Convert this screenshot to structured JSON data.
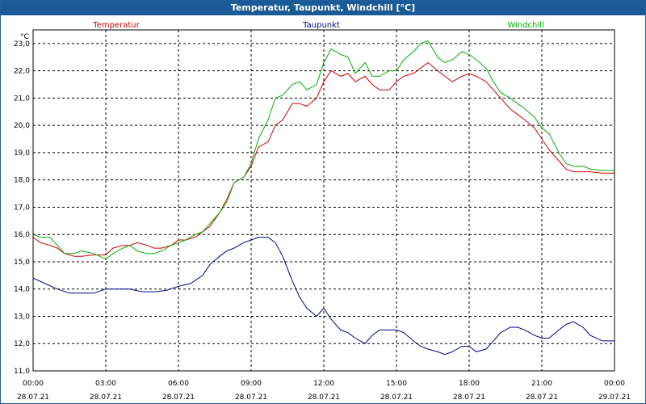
{
  "window": {
    "title": "Temperatur, Taupunkt, Windchill [°C]"
  },
  "chart_data": {
    "type": "line",
    "title": "Temperatur, Taupunkt, Windchill [°C]",
    "ylabel": "°C",
    "ylim": [
      11.0,
      23.5
    ],
    "xlim": [
      "00:00",
      "24:00"
    ],
    "y_ticks": [
      "11,0",
      "12,0",
      "13,0",
      "14,0",
      "15,0",
      "16,0",
      "17,0",
      "18,0",
      "19,0",
      "20,0",
      "21,0",
      "22,0",
      "23,0"
    ],
    "x_ticks": [
      {
        "time": "00:00",
        "date": "28.07.21"
      },
      {
        "time": "03:00",
        "date": "28.07.21"
      },
      {
        "time": "06:00",
        "date": "28.07.21"
      },
      {
        "time": "09:00",
        "date": "28.07.21"
      },
      {
        "time": "12:00",
        "date": "28.07.21"
      },
      {
        "time": "15:00",
        "date": "28.07.21"
      },
      {
        "time": "18:00",
        "date": "28.07.21"
      },
      {
        "time": "21:00",
        "date": "28.07.21"
      },
      {
        "time": "00:00",
        "date": "29.07.21"
      }
    ],
    "grid": true,
    "legend_position": "top",
    "series": [
      {
        "name": "Temperatur",
        "color": "#d00000",
        "points": [
          [
            0.0,
            15.9
          ],
          [
            0.3,
            15.7
          ],
          [
            0.7,
            15.6
          ],
          [
            1.0,
            15.5
          ],
          [
            1.3,
            15.3
          ],
          [
            1.7,
            15.2
          ],
          [
            2.0,
            15.2
          ],
          [
            2.5,
            15.25
          ],
          [
            3.0,
            15.25
          ],
          [
            3.3,
            15.5
          ],
          [
            3.7,
            15.6
          ],
          [
            4.0,
            15.6
          ],
          [
            4.3,
            15.7
          ],
          [
            4.7,
            15.6
          ],
          [
            5.0,
            15.5
          ],
          [
            5.3,
            15.5
          ],
          [
            5.7,
            15.6
          ],
          [
            6.0,
            15.8
          ],
          [
            6.3,
            15.8
          ],
          [
            6.7,
            15.9
          ],
          [
            7.0,
            16.1
          ],
          [
            7.3,
            16.3
          ],
          [
            7.7,
            16.8
          ],
          [
            8.0,
            17.3
          ],
          [
            8.3,
            17.9
          ],
          [
            8.7,
            18.1
          ],
          [
            9.0,
            18.5
          ],
          [
            9.3,
            19.2
          ],
          [
            9.7,
            19.4
          ],
          [
            10.0,
            20.0
          ],
          [
            10.3,
            20.2
          ],
          [
            10.7,
            20.8
          ],
          [
            11.0,
            20.8
          ],
          [
            11.3,
            20.7
          ],
          [
            11.7,
            21.0
          ],
          [
            12.0,
            21.6
          ],
          [
            12.3,
            22.0
          ],
          [
            12.7,
            21.8
          ],
          [
            13.0,
            21.9
          ],
          [
            13.3,
            21.6
          ],
          [
            13.7,
            21.8
          ],
          [
            14.0,
            21.5
          ],
          [
            14.3,
            21.3
          ],
          [
            14.7,
            21.3
          ],
          [
            15.0,
            21.6
          ],
          [
            15.3,
            21.8
          ],
          [
            15.7,
            21.9
          ],
          [
            16.0,
            22.1
          ],
          [
            16.3,
            22.3
          ],
          [
            16.7,
            22.0
          ],
          [
            17.0,
            21.8
          ],
          [
            17.3,
            21.6
          ],
          [
            17.7,
            21.8
          ],
          [
            18.0,
            21.9
          ],
          [
            18.3,
            21.8
          ],
          [
            18.7,
            21.6
          ],
          [
            19.0,
            21.3
          ],
          [
            19.3,
            21.0
          ],
          [
            19.7,
            20.6
          ],
          [
            20.0,
            20.4
          ],
          [
            20.3,
            20.2
          ],
          [
            20.7,
            19.9
          ],
          [
            21.0,
            19.5
          ],
          [
            21.3,
            19.1
          ],
          [
            21.7,
            18.7
          ],
          [
            22.0,
            18.4
          ],
          [
            22.3,
            18.3
          ],
          [
            22.7,
            18.3
          ],
          [
            23.0,
            18.3
          ],
          [
            23.5,
            18.25
          ],
          [
            24.0,
            18.25
          ]
        ]
      },
      {
        "name": "Taupunkt",
        "color": "#00008c",
        "points": [
          [
            0.0,
            14.4
          ],
          [
            0.5,
            14.2
          ],
          [
            1.0,
            14.0
          ],
          [
            1.5,
            13.85
          ],
          [
            2.0,
            13.85
          ],
          [
            2.5,
            13.85
          ],
          [
            3.0,
            14.0
          ],
          [
            3.5,
            14.0
          ],
          [
            4.0,
            14.0
          ],
          [
            4.5,
            13.9
          ],
          [
            5.0,
            13.9
          ],
          [
            5.5,
            13.95
          ],
          [
            6.0,
            14.1
          ],
          [
            6.5,
            14.2
          ],
          [
            7.0,
            14.5
          ],
          [
            7.3,
            14.9
          ],
          [
            7.7,
            15.2
          ],
          [
            8.0,
            15.4
          ],
          [
            8.3,
            15.5
          ],
          [
            8.7,
            15.7
          ],
          [
            9.0,
            15.8
          ],
          [
            9.3,
            15.9
          ],
          [
            9.7,
            15.9
          ],
          [
            10.0,
            15.7
          ],
          [
            10.3,
            15.2
          ],
          [
            10.7,
            14.3
          ],
          [
            11.0,
            13.7
          ],
          [
            11.3,
            13.3
          ],
          [
            11.7,
            13.0
          ],
          [
            12.0,
            13.3
          ],
          [
            12.3,
            12.9
          ],
          [
            12.7,
            12.5
          ],
          [
            13.0,
            12.4
          ],
          [
            13.3,
            12.2
          ],
          [
            13.7,
            12.0
          ],
          [
            14.0,
            12.3
          ],
          [
            14.3,
            12.5
          ],
          [
            14.7,
            12.5
          ],
          [
            15.0,
            12.5
          ],
          [
            15.3,
            12.4
          ],
          [
            15.7,
            12.1
          ],
          [
            16.0,
            11.9
          ],
          [
            16.3,
            11.8
          ],
          [
            16.7,
            11.7
          ],
          [
            17.0,
            11.6
          ],
          [
            17.3,
            11.7
          ],
          [
            17.7,
            11.9
          ],
          [
            18.0,
            11.9
          ],
          [
            18.3,
            11.7
          ],
          [
            18.7,
            11.8
          ],
          [
            19.0,
            12.1
          ],
          [
            19.3,
            12.4
          ],
          [
            19.7,
            12.6
          ],
          [
            20.0,
            12.6
          ],
          [
            20.3,
            12.5
          ],
          [
            20.7,
            12.3
          ],
          [
            21.0,
            12.2
          ],
          [
            21.3,
            12.2
          ],
          [
            21.7,
            12.5
          ],
          [
            22.0,
            12.7
          ],
          [
            22.3,
            12.8
          ],
          [
            22.7,
            12.6
          ],
          [
            23.0,
            12.3
          ],
          [
            23.5,
            12.1
          ],
          [
            24.0,
            12.1
          ]
        ]
      },
      {
        "name": "Windchill",
        "color": "#00b000",
        "points": [
          [
            0.0,
            16.0
          ],
          [
            0.3,
            15.9
          ],
          [
            0.7,
            15.9
          ],
          [
            1.0,
            15.6
          ],
          [
            1.3,
            15.3
          ],
          [
            1.7,
            15.3
          ],
          [
            2.0,
            15.4
          ],
          [
            2.5,
            15.3
          ],
          [
            3.0,
            15.1
          ],
          [
            3.3,
            15.3
          ],
          [
            3.7,
            15.5
          ],
          [
            4.0,
            15.6
          ],
          [
            4.3,
            15.4
          ],
          [
            4.7,
            15.3
          ],
          [
            5.0,
            15.3
          ],
          [
            5.3,
            15.4
          ],
          [
            5.7,
            15.6
          ],
          [
            6.0,
            15.7
          ],
          [
            6.3,
            15.8
          ],
          [
            6.7,
            16.0
          ],
          [
            7.0,
            16.1
          ],
          [
            7.3,
            16.4
          ],
          [
            7.7,
            16.8
          ],
          [
            8.0,
            17.2
          ],
          [
            8.3,
            17.9
          ],
          [
            8.7,
            18.1
          ],
          [
            9.0,
            18.6
          ],
          [
            9.3,
            19.5
          ],
          [
            9.7,
            20.2
          ],
          [
            10.0,
            21.0
          ],
          [
            10.3,
            21.1
          ],
          [
            10.7,
            21.5
          ],
          [
            11.0,
            21.6
          ],
          [
            11.3,
            21.3
          ],
          [
            11.7,
            21.5
          ],
          [
            12.0,
            22.3
          ],
          [
            12.3,
            22.8
          ],
          [
            12.7,
            22.6
          ],
          [
            13.0,
            22.5
          ],
          [
            13.3,
            21.9
          ],
          [
            13.7,
            22.3
          ],
          [
            14.0,
            21.8
          ],
          [
            14.3,
            21.8
          ],
          [
            14.7,
            22.0
          ],
          [
            15.0,
            22.0
          ],
          [
            15.3,
            22.4
          ],
          [
            15.7,
            22.7
          ],
          [
            16.0,
            23.0
          ],
          [
            16.3,
            23.1
          ],
          [
            16.7,
            22.5
          ],
          [
            17.0,
            22.3
          ],
          [
            17.3,
            22.4
          ],
          [
            17.7,
            22.7
          ],
          [
            18.0,
            22.6
          ],
          [
            18.3,
            22.4
          ],
          [
            18.7,
            22.1
          ],
          [
            19.0,
            21.6
          ],
          [
            19.3,
            21.2
          ],
          [
            19.7,
            21.0
          ],
          [
            20.0,
            20.8
          ],
          [
            20.3,
            20.6
          ],
          [
            20.7,
            20.3
          ],
          [
            21.0,
            19.9
          ],
          [
            21.3,
            19.7
          ],
          [
            21.7,
            19.0
          ],
          [
            22.0,
            18.6
          ],
          [
            22.3,
            18.5
          ],
          [
            22.7,
            18.5
          ],
          [
            23.0,
            18.4
          ],
          [
            23.5,
            18.35
          ],
          [
            24.0,
            18.35
          ]
        ]
      }
    ]
  }
}
